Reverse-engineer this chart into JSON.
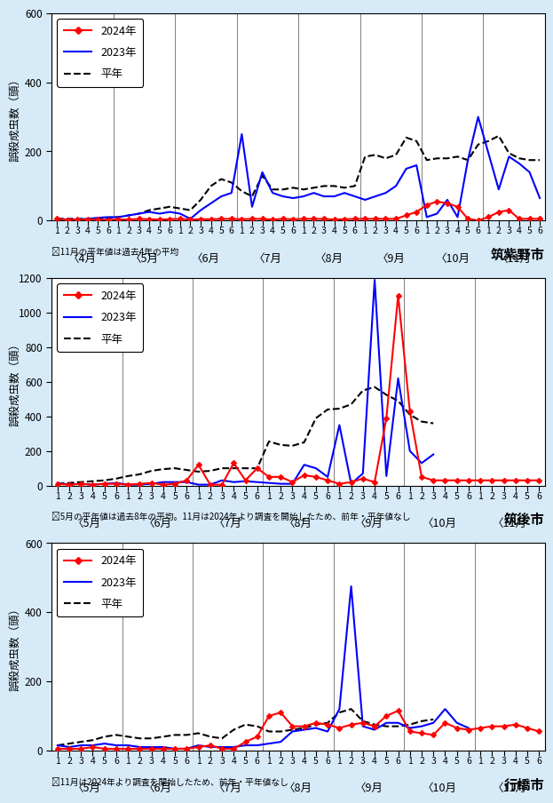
{
  "chart1": {
    "title": "筑紫野市",
    "note": "‶11月の平年値は過去4年の平均",
    "months": [
      "〈4月",
      "〈5月",
      "〈6月",
      "〈7月",
      "〈8月",
      "〈9月",
      "〈10月",
      "〈11月"
    ],
    "ylim": [
      0,
      600
    ],
    "yticks": [
      0,
      200,
      400,
      600
    ],
    "data_2024": [
      5,
      2,
      3,
      3,
      3,
      2,
      3,
      3,
      5,
      4,
      3,
      4,
      5,
      3,
      4,
      4,
      5,
      5,
      4,
      5,
      5,
      3,
      5,
      4,
      5,
      5,
      5,
      3,
      4,
      5,
      5,
      5,
      5,
      5,
      15,
      25,
      45,
      55,
      50,
      40,
      5,
      0,
      10,
      25,
      30,
      5,
      5,
      5
    ],
    "data_2023": [
      5,
      3,
      3,
      5,
      8,
      10,
      10,
      15,
      20,
      25,
      20,
      25,
      20,
      5,
      30,
      50,
      70,
      80,
      250,
      40,
      140,
      80,
      70,
      65,
      70,
      80,
      70,
      70,
      80,
      70,
      60,
      70,
      80,
      100,
      150,
      160,
      10,
      20,
      60,
      10,
      175,
      300,
      195,
      90,
      185,
      165,
      140,
      65
    ],
    "data_heinen": [
      5,
      5,
      5,
      5,
      5,
      8,
      10,
      15,
      20,
      30,
      35,
      40,
      35,
      30,
      60,
      100,
      120,
      110,
      85,
      70,
      130,
      90,
      90,
      95,
      90,
      95,
      100,
      100,
      95,
      100,
      185,
      190,
      180,
      190,
      240,
      230,
      175,
      180,
      180,
      185,
      175,
      220,
      230,
      245,
      195,
      180,
      175,
      175
    ]
  },
  "chart2": {
    "title": "筑後市",
    "note": "‶5月の平年値は過去8年の平均。11月は2024年より調査を開始したため、前年・平年値なし",
    "months": [
      "〈5月",
      "〈6月",
      "〈7月",
      "〈8月",
      "〈9月",
      "〈10月",
      "〈11月"
    ],
    "ylim": [
      0,
      1200
    ],
    "yticks": [
      0,
      200,
      400,
      600,
      800,
      1000,
      1200
    ],
    "data_2024": [
      10,
      5,
      10,
      5,
      10,
      10,
      5,
      10,
      15,
      5,
      10,
      30,
      120,
      5,
      5,
      130,
      30,
      100,
      50,
      50,
      20,
      60,
      50,
      30,
      10,
      20,
      40,
      20,
      390,
      1100,
      430,
      50,
      30,
      30,
      30,
      30,
      30,
      30,
      30,
      30,
      30,
      30
    ],
    "data_2023": [
      15,
      5,
      10,
      5,
      10,
      15,
      5,
      5,
      10,
      20,
      20,
      20,
      5,
      5,
      30,
      20,
      25,
      20,
      15,
      10,
      10,
      120,
      100,
      50,
      350,
      10,
      70,
      1190,
      55,
      620,
      200,
      130,
      180,
      null,
      null,
      null,
      null,
      null,
      null,
      null,
      null,
      null
    ],
    "data_heinen": [
      10,
      15,
      20,
      25,
      30,
      40,
      55,
      65,
      85,
      95,
      100,
      90,
      80,
      85,
      100,
      100,
      100,
      100,
      255,
      235,
      230,
      250,
      390,
      440,
      445,
      470,
      550,
      570,
      525,
      490,
      410,
      370,
      360,
      null,
      null,
      null,
      null,
      null,
      null,
      null,
      null,
      null
    ]
  },
  "chart3": {
    "title": "行橋市",
    "note": "‶11月は2024年より調査を開始したため、前年・平年値なし",
    "months": [
      "〈5月",
      "〈6月",
      "〈7月",
      "〈8月",
      "〈9月",
      "〈10月",
      "〈11月"
    ],
    "ylim": [
      0,
      600
    ],
    "yticks": [
      0,
      200,
      400,
      600
    ],
    "data_2024": [
      5,
      5,
      5,
      10,
      5,
      5,
      5,
      5,
      5,
      5,
      5,
      5,
      10,
      15,
      5,
      5,
      25,
      40,
      100,
      110,
      70,
      70,
      80,
      75,
      65,
      75,
      80,
      70,
      100,
      115,
      55,
      50,
      45,
      80,
      65,
      60,
      65,
      70,
      70,
      75,
      65,
      55
    ],
    "data_2023": [
      15,
      10,
      15,
      15,
      20,
      15,
      15,
      10,
      10,
      10,
      5,
      5,
      15,
      10,
      10,
      10,
      15,
      15,
      20,
      25,
      55,
      60,
      65,
      55,
      120,
      475,
      70,
      60,
      80,
      80,
      65,
      70,
      80,
      120,
      80,
      65,
      null,
      null,
      null,
      null,
      null,
      null
    ],
    "data_heinen": [
      15,
      20,
      25,
      30,
      40,
      45,
      40,
      35,
      35,
      40,
      45,
      45,
      50,
      40,
      35,
      60,
      75,
      70,
      55,
      55,
      60,
      65,
      75,
      80,
      110,
      120,
      85,
      75,
      70,
      70,
      75,
      85,
      90,
      null,
      null,
      null,
      null,
      null,
      null,
      null,
      null,
      null
    ]
  },
  "color_2024": "#FF0000",
  "color_2023": "#0000FF",
  "color_heinen": "#000000",
  "ylabel": "誤殺成虫数（頭）",
  "legend_2024": "2024年",
  "legend_2023": "2023年",
  "legend_heinen": "平年",
  "bg_color": "#D6EAF8",
  "plot_bg": "#FFFFFF"
}
